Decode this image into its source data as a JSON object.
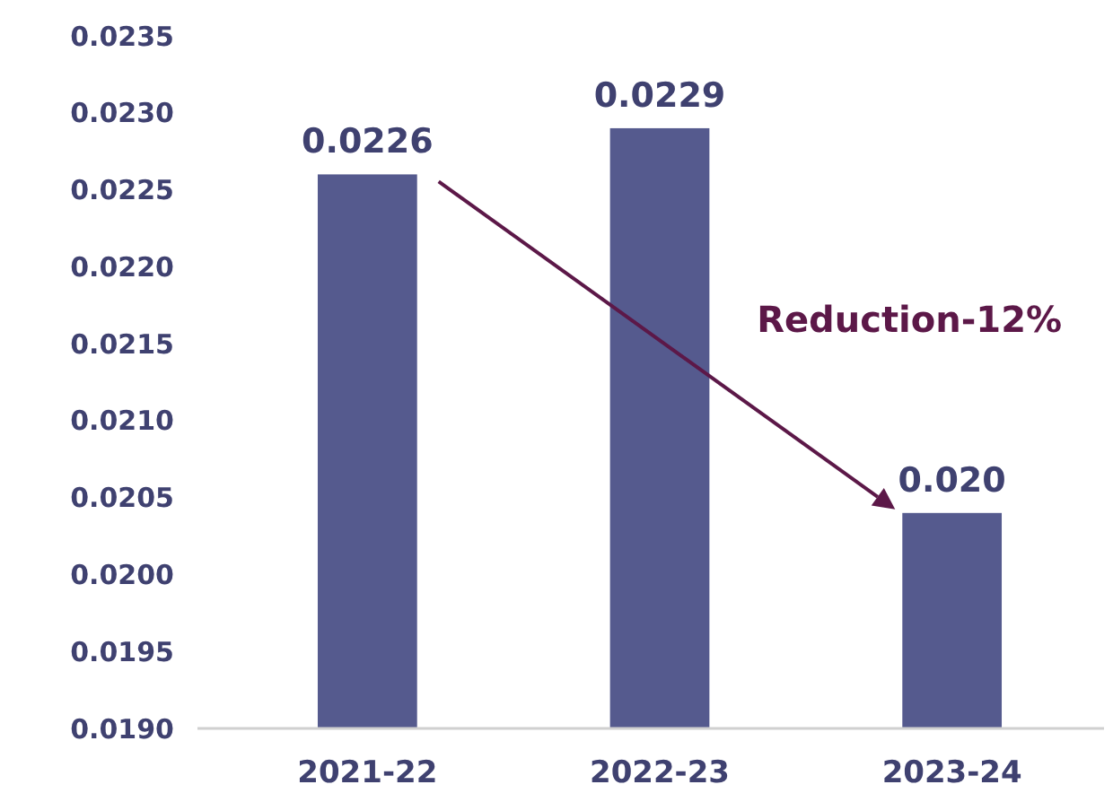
{
  "chart_data": {
    "type": "bar",
    "categories": [
      "2021-22",
      "2022-23",
      "2023-24"
    ],
    "values": [
      0.0226,
      0.0229,
      0.0204
    ],
    "value_labels": [
      "0.0226",
      "0.0229",
      "0.020"
    ],
    "color": "#555a8e",
    "ylim": [
      0.019,
      0.0235
    ],
    "yticks": [
      {
        "value": 0.019,
        "label": "0.0190"
      },
      {
        "value": 0.0195,
        "label": "0.0195"
      },
      {
        "value": 0.02,
        "label": "0.0200"
      },
      {
        "value": 0.0205,
        "label": "0.0205"
      },
      {
        "value": 0.021,
        "label": "0.0210"
      },
      {
        "value": 0.0215,
        "label": "0.0215"
      },
      {
        "value": 0.022,
        "label": "0.0220"
      },
      {
        "value": 0.0225,
        "label": "0.0225"
      },
      {
        "value": 0.023,
        "label": "0.0230"
      },
      {
        "value": 0.0235,
        "label": "0.0235"
      }
    ],
    "annotations": [
      "Reduction-12%"
    ],
    "grid": false
  }
}
